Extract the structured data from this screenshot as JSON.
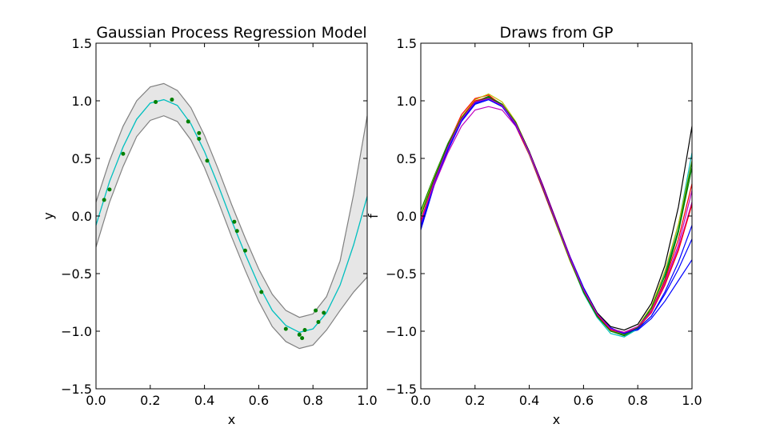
{
  "chart_data": [
    {
      "type": "line",
      "title": "Gaussian Process Regression Model",
      "xlabel": "x",
      "ylabel": "y",
      "xlim": [
        0.0,
        1.0
      ],
      "ylim": [
        -1.5,
        1.5
      ],
      "xticks": [
        "0.0",
        "0.2",
        "0.4",
        "0.6",
        "0.8",
        "1.0"
      ],
      "yticks": [
        "−1.5",
        "−1.0",
        "−0.5",
        "0.0",
        "0.5",
        "1.0",
        "1.5"
      ],
      "grid": false,
      "colors": {
        "mean": "#00bfbf",
        "band_fill": "#e6e6e6",
        "band_edge": "#808080",
        "points": "#008000"
      },
      "mean": {
        "x": [
          0.0,
          0.05,
          0.1,
          0.15,
          0.2,
          0.25,
          0.3,
          0.35,
          0.4,
          0.45,
          0.5,
          0.55,
          0.6,
          0.65,
          0.7,
          0.75,
          0.8,
          0.85,
          0.9,
          0.95,
          1.0
        ],
        "y": [
          -0.08,
          0.3,
          0.6,
          0.84,
          0.98,
          1.01,
          0.96,
          0.8,
          0.56,
          0.27,
          -0.04,
          -0.33,
          -0.6,
          -0.82,
          -0.95,
          -1.01,
          -0.98,
          -0.84,
          -0.6,
          -0.25,
          0.17
        ]
      },
      "band_upper": [
        0.12,
        0.48,
        0.78,
        1.0,
        1.12,
        1.15,
        1.09,
        0.94,
        0.7,
        0.41,
        0.1,
        -0.19,
        -0.46,
        -0.68,
        -0.82,
        -0.88,
        -0.85,
        -0.7,
        -0.39,
        0.19,
        0.87
      ],
      "band_lower": [
        -0.27,
        0.12,
        0.43,
        0.69,
        0.83,
        0.87,
        0.82,
        0.66,
        0.42,
        0.13,
        -0.18,
        -0.47,
        -0.74,
        -0.96,
        -1.09,
        -1.15,
        -1.12,
        -0.99,
        -0.82,
        -0.66,
        -0.53
      ],
      "points": {
        "x": [
          0.03,
          0.05,
          0.1,
          0.22,
          0.28,
          0.34,
          0.38,
          0.38,
          0.41,
          0.51,
          0.52,
          0.55,
          0.61,
          0.7,
          0.75,
          0.76,
          0.77,
          0.81,
          0.82,
          0.84
        ],
        "y": [
          0.14,
          0.23,
          0.54,
          0.99,
          1.01,
          0.82,
          0.72,
          0.67,
          0.48,
          -0.05,
          -0.13,
          -0.3,
          -0.66,
          -0.98,
          -1.03,
          -1.06,
          -0.99,
          -0.82,
          -0.92,
          -0.84
        ]
      }
    },
    {
      "type": "line",
      "title": "Draws from GP",
      "xlabel": "x",
      "ylabel": "f",
      "xlim": [
        0.0,
        1.0
      ],
      "ylim": [
        -1.5,
        1.5
      ],
      "xticks": [
        "0.0",
        "0.2",
        "0.4",
        "0.6",
        "0.8",
        "1.0"
      ],
      "yticks": [
        "−1.5",
        "−1.0",
        "−0.5",
        "0.0",
        "0.5",
        "1.0",
        "1.5"
      ],
      "grid": false,
      "x": [
        0.0,
        0.05,
        0.1,
        0.15,
        0.2,
        0.25,
        0.3,
        0.35,
        0.4,
        0.45,
        0.5,
        0.55,
        0.6,
        0.65,
        0.7,
        0.75,
        0.8,
        0.85,
        0.9,
        0.95,
        1.0
      ],
      "series": [
        {
          "color": "#0000ff",
          "values": [
            -0.12,
            0.27,
            0.57,
            0.82,
            0.97,
            1.01,
            0.95,
            0.79,
            0.55,
            0.26,
            -0.05,
            -0.35,
            -0.62,
            -0.84,
            -0.97,
            -1.02,
            -0.99,
            -0.89,
            -0.74,
            -0.56,
            -0.38
          ]
        },
        {
          "color": "#008000",
          "values": [
            0.05,
            0.35,
            0.63,
            0.86,
            0.99,
            1.04,
            0.97,
            0.8,
            0.55,
            0.25,
            -0.07,
            -0.38,
            -0.65,
            -0.87,
            -1.0,
            -1.04,
            -0.98,
            -0.83,
            -0.55,
            -0.14,
            0.42
          ]
        },
        {
          "color": "#ff0000",
          "values": [
            -0.1,
            0.3,
            0.62,
            0.88,
            1.02,
            1.05,
            0.96,
            0.78,
            0.53,
            0.23,
            -0.08,
            -0.37,
            -0.64,
            -0.85,
            -0.98,
            -1.01,
            -0.96,
            -0.82,
            -0.56,
            -0.2,
            0.28
          ]
        },
        {
          "color": "#00bfbf",
          "values": [
            0.0,
            0.33,
            0.61,
            0.84,
            0.99,
            1.03,
            0.97,
            0.8,
            0.54,
            0.24,
            -0.07,
            -0.38,
            -0.67,
            -0.88,
            -1.02,
            -1.05,
            -0.98,
            -0.8,
            -0.5,
            -0.08,
            0.55
          ]
        },
        {
          "color": "#bf00bf",
          "values": [
            -0.07,
            0.27,
            0.55,
            0.78,
            0.92,
            0.95,
            0.92,
            0.78,
            0.56,
            0.27,
            -0.04,
            -0.35,
            -0.63,
            -0.85,
            -0.98,
            -1.01,
            -0.97,
            -0.84,
            -0.6,
            -0.28,
            0.12
          ]
        },
        {
          "color": "#bfbf00",
          "values": [
            0.02,
            0.34,
            0.62,
            0.86,
            1.01,
            1.06,
            0.99,
            0.82,
            0.56,
            0.25,
            -0.08,
            -0.39,
            -0.66,
            -0.87,
            -1.0,
            -1.03,
            -0.96,
            -0.79,
            -0.48,
            -0.07,
            0.48
          ]
        },
        {
          "color": "#000000",
          "values": [
            -0.05,
            0.3,
            0.6,
            0.84,
            0.99,
            1.02,
            0.97,
            0.81,
            0.56,
            0.26,
            -0.05,
            -0.36,
            -0.63,
            -0.84,
            -0.96,
            -0.99,
            -0.94,
            -0.76,
            -0.43,
            0.08,
            0.78
          ]
        },
        {
          "color": "#0000ff",
          "values": [
            -0.1,
            0.29,
            0.59,
            0.83,
            0.97,
            1.01,
            0.95,
            0.79,
            0.55,
            0.25,
            -0.06,
            -0.37,
            -0.64,
            -0.85,
            -0.98,
            -1.02,
            -0.98,
            -0.87,
            -0.68,
            -0.46,
            -0.2
          ]
        },
        {
          "color": "#ff0000",
          "values": [
            -0.04,
            0.31,
            0.61,
            0.85,
            1.0,
            1.03,
            0.97,
            0.8,
            0.55,
            0.24,
            -0.07,
            -0.38,
            -0.65,
            -0.86,
            -0.99,
            -1.02,
            -0.97,
            -0.84,
            -0.6,
            -0.3,
            0.1
          ]
        },
        {
          "color": "#008000",
          "values": [
            0.0,
            0.33,
            0.62,
            0.85,
            0.99,
            1.03,
            0.97,
            0.81,
            0.55,
            0.24,
            -0.07,
            -0.38,
            -0.66,
            -0.87,
            -1.0,
            -1.03,
            -0.97,
            -0.8,
            -0.52,
            -0.12,
            0.47
          ]
        },
        {
          "color": "#0000ff",
          "values": [
            -0.08,
            0.3,
            0.6,
            0.83,
            0.98,
            1.02,
            0.96,
            0.8,
            0.55,
            0.25,
            -0.06,
            -0.36,
            -0.63,
            -0.85,
            -0.98,
            -1.02,
            -0.98,
            -0.87,
            -0.66,
            -0.4,
            -0.08
          ]
        },
        {
          "color": "#bf00bf",
          "values": [
            -0.06,
            0.3,
            0.6,
            0.84,
            0.99,
            1.02,
            0.96,
            0.8,
            0.55,
            0.25,
            -0.06,
            -0.37,
            -0.64,
            -0.85,
            -0.98,
            -1.01,
            -0.96,
            -0.83,
            -0.58,
            -0.25,
            0.22
          ]
        }
      ]
    }
  ]
}
